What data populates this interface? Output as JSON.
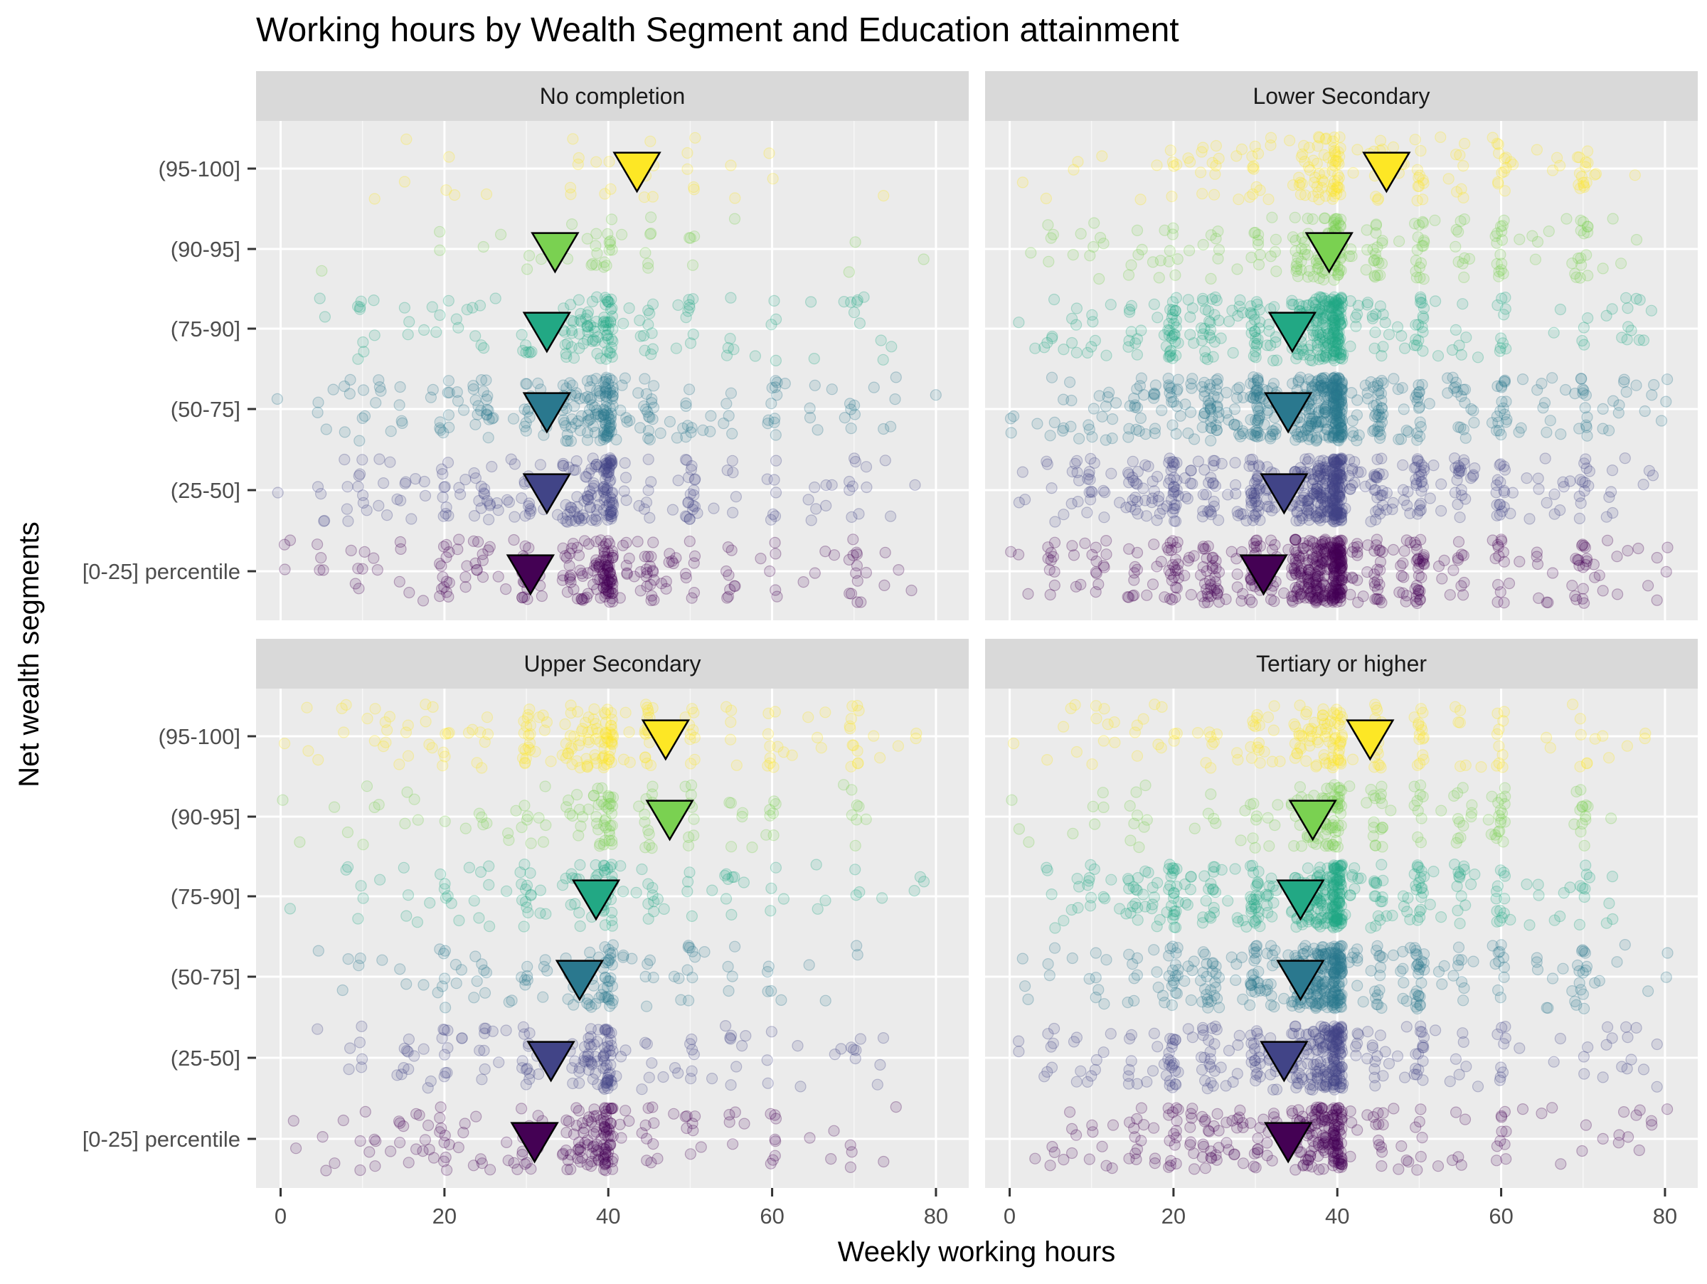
{
  "chart_data": {
    "type": "scatter",
    "title": "Working hours by Wealth Segment and Education attainment",
    "xlabel": "Weekly working hours",
    "ylabel": "Net wealth segments",
    "x_ticks": [
      0,
      20,
      40,
      60,
      80
    ],
    "xlim": [
      -3,
      84
    ],
    "grid": true,
    "legend": "none",
    "categories": [
      "[0-25] percentile",
      "(25-50]",
      "(50-75]",
      "(75-90]",
      "(90-95]",
      "(95-100]"
    ],
    "colors": {
      "[0-25] percentile": "#440154",
      "(25-50]": "#414487",
      "(50-75]": "#2A788E",
      "(75-90]": "#22A884",
      "(90-95]": "#7AD151",
      "(95-100]": "#FDE725"
    },
    "panels": [
      {
        "name": "No completion",
        "density": [
          1.0,
          1.0,
          1.0,
          0.6,
          0.16,
          0.12
        ],
        "means": [
          30.5,
          32.5,
          32.5,
          32.5,
          33.5,
          43.5
        ]
      },
      {
        "name": "Lower Secondary",
        "density": [
          2.2,
          2.2,
          2.2,
          1.6,
          0.9,
          0.7
        ],
        "means": [
          31.0,
          33.5,
          34.0,
          34.5,
          39.0,
          46.0
        ]
      },
      {
        "name": "Upper Secondary",
        "density": [
          0.8,
          0.65,
          0.45,
          0.5,
          0.45,
          0.8
        ],
        "means": [
          31.0,
          33.0,
          36.5,
          38.5,
          47.5,
          47.0
        ]
      },
      {
        "name": "Tertiary or higher",
        "density": [
          1.2,
          1.4,
          1.7,
          1.6,
          0.7,
          0.75
        ],
        "means": [
          34.0,
          33.5,
          35.5,
          35.5,
          37.0,
          44.0
        ]
      }
    ]
  }
}
